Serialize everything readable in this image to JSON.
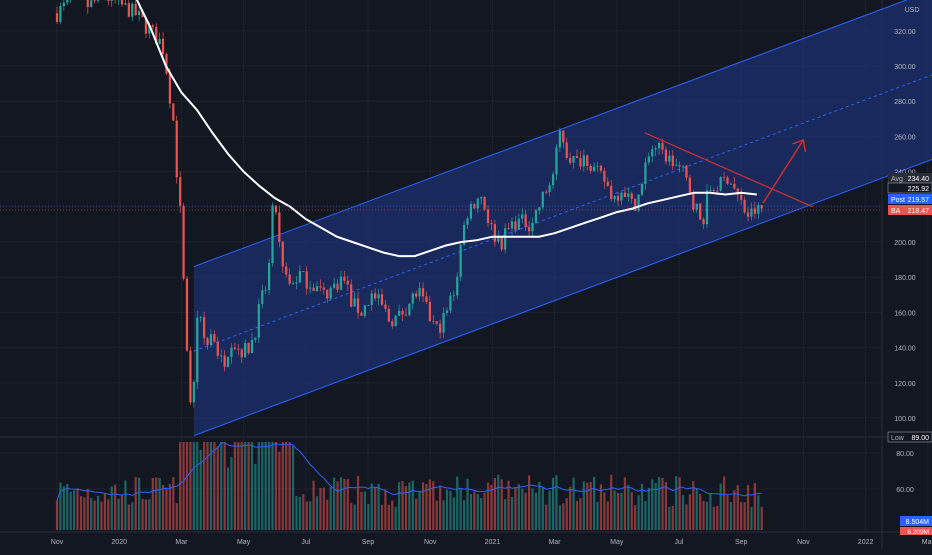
{
  "colors": {
    "background": "#131722",
    "grid": "#1e222d",
    "axis_text": "#b2b5be",
    "up": "#26a69a",
    "down": "#ef5350",
    "channel_fill": "#1e3070",
    "channel_line": "#2962ff",
    "ma_line": "#ffffff",
    "resistance_line": "#d32f2f",
    "volume_ma": "#2962ff",
    "avg_label": "#2a2e39",
    "last_label": "#131722",
    "post_label": "#2962ff",
    "ba_label": "#ef5350",
    "low_label": "#131722"
  },
  "chart_data": {
    "type": "candlestick",
    "currency": "USD",
    "price_axis_ticks": [
      "320.00",
      "300.00",
      "280.00",
      "260.00",
      "240.00",
      "220.00",
      "200.00",
      "180.00",
      "160.00",
      "140.00",
      "120.00",
      "100.00"
    ],
    "price_tick_values": [
      320,
      300,
      280,
      260,
      240,
      220,
      200,
      180,
      160,
      140,
      120,
      100
    ],
    "volume_axis_ticks": [
      "80.00",
      "60.00"
    ],
    "volume_tick_values": [
      80,
      60
    ],
    "time_axis_labels": [
      "Nov",
      "2020",
      "Mar",
      "May",
      "Jul",
      "Sep",
      "Nov",
      "2021",
      "Mar",
      "May",
      "Jul",
      "Sep",
      "Nov",
      "2022",
      "Mar"
    ],
    "time_axis_months": [
      0,
      2,
      4,
      6,
      8,
      10,
      12,
      14,
      16,
      18,
      20,
      22,
      24,
      26,
      28
    ],
    "start_month": "2019-11",
    "ylim": [
      89,
      336
    ],
    "price_labels": {
      "avg": {
        "tag": "Avg",
        "value": "234.40"
      },
      "last": {
        "value": "225.92"
      },
      "post": {
        "tag": "Post",
        "value": "219.57"
      },
      "ba": {
        "tag": "BA",
        "value": "218.47"
      },
      "low": {
        "tag": "Low",
        "value": "89.00"
      }
    },
    "volume_labels": {
      "volume": "8.504M",
      "volume_ma": "6.209M"
    },
    "price_path_points": [
      [
        0.0,
        330
      ],
      [
        0.5,
        338
      ],
      [
        1.0,
        334
      ],
      [
        1.5,
        340
      ],
      [
        2.0,
        335
      ],
      [
        2.5,
        330
      ],
      [
        3.0,
        320
      ],
      [
        3.4,
        312
      ],
      [
        3.6,
        290
      ],
      [
        3.8,
        260
      ],
      [
        4.0,
        200
      ],
      [
        4.2,
        120
      ],
      [
        4.35,
        92
      ],
      [
        4.5,
        160
      ],
      [
        4.8,
        140
      ],
      [
        5.0,
        150
      ],
      [
        5.3,
        130
      ],
      [
        5.6,
        145
      ],
      [
        5.9,
        138
      ],
      [
        6.2,
        140
      ],
      [
        6.5,
        160
      ],
      [
        6.8,
        180
      ],
      [
        7.0,
        228
      ],
      [
        7.2,
        185
      ],
      [
        7.5,
        175
      ],
      [
        7.8,
        182
      ],
      [
        8.0,
        178
      ],
      [
        8.3,
        175
      ],
      [
        8.6,
        170
      ],
      [
        8.9,
        175
      ],
      [
        9.2,
        180
      ],
      [
        9.5,
        165
      ],
      [
        9.8,
        160
      ],
      [
        10.1,
        170
      ],
      [
        10.4,
        165
      ],
      [
        10.7,
        155
      ],
      [
        11.0,
        158
      ],
      [
        11.3,
        165
      ],
      [
        11.6,
        172
      ],
      [
        11.9,
        160
      ],
      [
        12.2,
        150
      ],
      [
        12.5,
        158
      ],
      [
        12.8,
        175
      ],
      [
        13.0,
        200
      ],
      [
        13.2,
        218
      ],
      [
        13.4,
        222
      ],
      [
        13.6,
        228
      ],
      [
        13.8,
        218
      ],
      [
        14.0,
        205
      ],
      [
        14.3,
        200
      ],
      [
        14.6,
        210
      ],
      [
        14.9,
        212
      ],
      [
        15.2,
        210
      ],
      [
        15.5,
        220
      ],
      [
        15.8,
        232
      ],
      [
        16.0,
        240
      ],
      [
        16.2,
        265
      ],
      [
        16.4,
        250
      ],
      [
        16.7,
        245
      ],
      [
        17.0,
        250
      ],
      [
        17.3,
        240
      ],
      [
        17.6,
        235
      ],
      [
        17.9,
        225
      ],
      [
        18.2,
        232
      ],
      [
        18.5,
        220
      ],
      [
        18.8,
        230
      ],
      [
        19.0,
        250
      ],
      [
        19.2,
        255
      ],
      [
        19.5,
        250
      ],
      [
        19.8,
        245
      ],
      [
        20.1,
        240
      ],
      [
        20.4,
        228
      ],
      [
        20.7,
        210
      ],
      [
        21.0,
        230
      ],
      [
        21.3,
        232
      ],
      [
        21.6,
        238
      ],
      [
        21.9,
        225
      ],
      [
        22.2,
        215
      ],
      [
        22.5,
        218
      ],
      [
        22.7,
        219
      ]
    ],
    "ma_points": [
      [
        2.5,
        340
      ],
      [
        3.0,
        322
      ],
      [
        3.5,
        300
      ],
      [
        4.0,
        285
      ],
      [
        4.5,
        275
      ],
      [
        5.0,
        262
      ],
      [
        5.5,
        250
      ],
      [
        6.0,
        240
      ],
      [
        6.5,
        232
      ],
      [
        7.0,
        225
      ],
      [
        7.5,
        220
      ],
      [
        8.0,
        213
      ],
      [
        8.5,
        208
      ],
      [
        9.0,
        203
      ],
      [
        9.5,
        200
      ],
      [
        10.0,
        197
      ],
      [
        10.5,
        194
      ],
      [
        11.0,
        192
      ],
      [
        11.5,
        192
      ],
      [
        12.0,
        195
      ],
      [
        12.5,
        198
      ],
      [
        13.0,
        200
      ],
      [
        13.5,
        201
      ],
      [
        14.0,
        203
      ],
      [
        14.5,
        203
      ],
      [
        15.0,
        203
      ],
      [
        15.5,
        203
      ],
      [
        16.0,
        205
      ],
      [
        16.5,
        208
      ],
      [
        17.0,
        211
      ],
      [
        17.5,
        214
      ],
      [
        18.0,
        217
      ],
      [
        18.5,
        219
      ],
      [
        19.0,
        222
      ],
      [
        19.5,
        224
      ],
      [
        20.0,
        226
      ],
      [
        20.5,
        228
      ],
      [
        21.0,
        228
      ],
      [
        21.5,
        227
      ],
      [
        22.0,
        228
      ],
      [
        22.5,
        227
      ]
    ],
    "channel": {
      "upper_start": [
        4.4,
        186
      ],
      "upper_end": [
        28.6,
        346
      ],
      "lower_start": [
        4.4,
        90
      ],
      "lower_end": [
        28.6,
        250
      ]
    },
    "resistance": {
      "start": [
        18.9,
        262
      ],
      "end": [
        24.3,
        220
      ]
    },
    "arrow": {
      "start": [
        22.7,
        222
      ],
      "end": [
        24.0,
        258
      ]
    }
  }
}
